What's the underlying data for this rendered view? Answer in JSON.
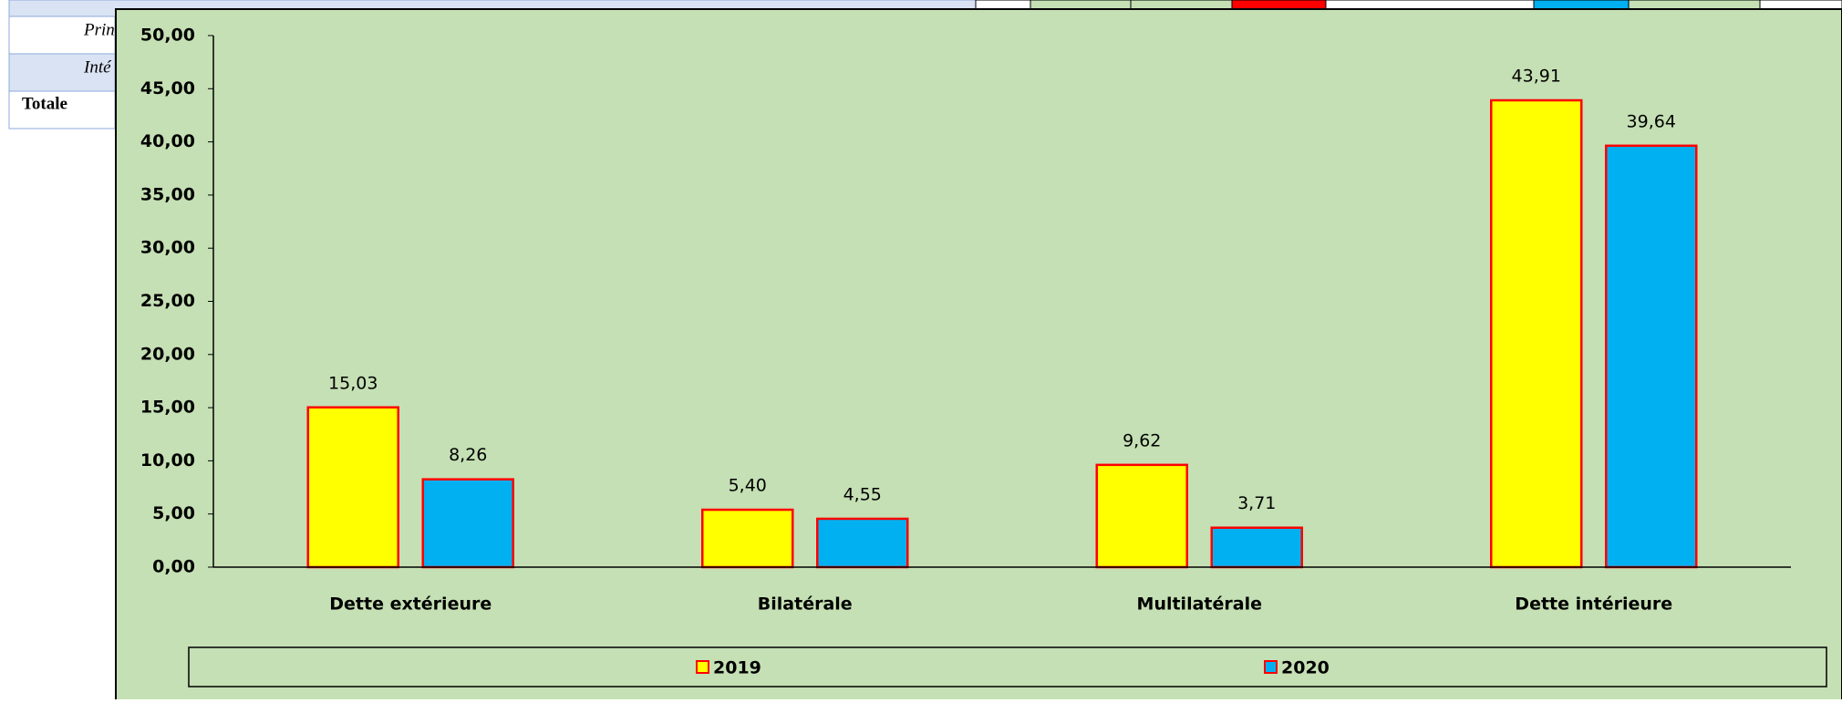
{
  "table": {
    "rows": [
      "Prin",
      "Inté",
      "Totale"
    ]
  },
  "chart_data": {
    "type": "bar",
    "categories": [
      "Dette extérieure",
      "Bilatérale",
      "Multilatérale",
      "Dette intérieure"
    ],
    "series": [
      {
        "name": "2019",
        "color": "#ffff00",
        "values": [
          15.03,
          5.4,
          9.62,
          43.91
        ],
        "value_labels": [
          "15,03",
          "5,40",
          "9,62",
          "43,91"
        ]
      },
      {
        "name": "2020",
        "color": "#00b0f0",
        "values": [
          8.26,
          4.55,
          3.71,
          39.64
        ],
        "value_labels": [
          "8,26",
          "4,55",
          "3,71",
          "39,64"
        ]
      }
    ],
    "bar_edge_color": "#ff0000",
    "ylim": [
      0,
      50
    ],
    "yticks": [
      {
        "value": 0,
        "label": "0,00"
      },
      {
        "value": 5,
        "label": "5,00"
      },
      {
        "value": 10,
        "label": "10,00"
      },
      {
        "value": 15,
        "label": "15,00"
      },
      {
        "value": 20,
        "label": "20,00"
      },
      {
        "value": 25,
        "label": "25,00"
      },
      {
        "value": 30,
        "label": "30,00"
      },
      {
        "value": 35,
        "label": "35,00"
      },
      {
        "value": 40,
        "label": "40,00"
      },
      {
        "value": 45,
        "label": "45,00"
      },
      {
        "value": 50,
        "label": "50,00"
      }
    ],
    "grid": false,
    "legend": "bottom"
  }
}
